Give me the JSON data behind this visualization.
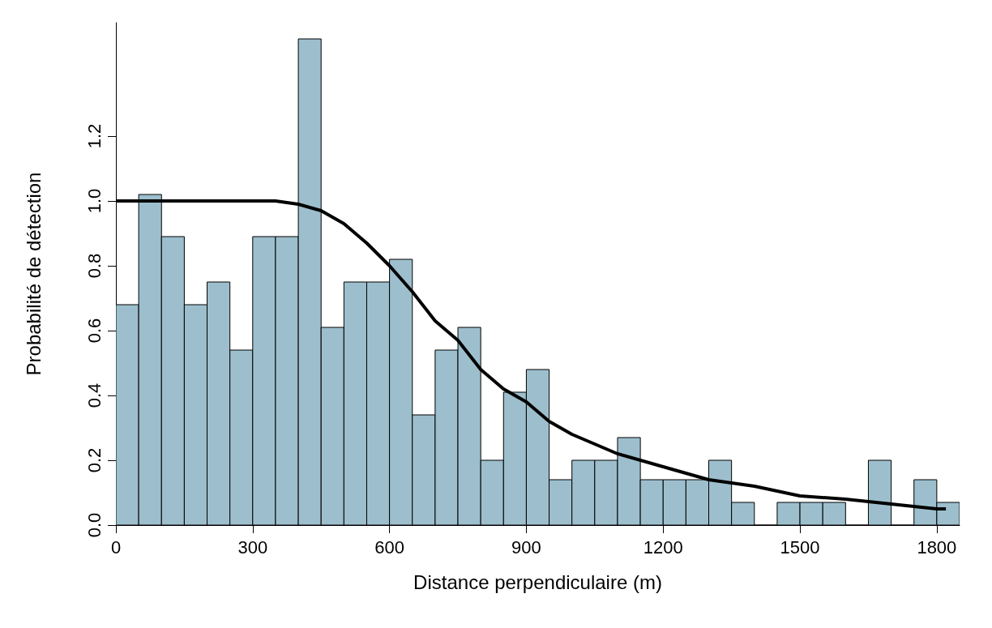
{
  "chart_data": {
    "type": "histogram",
    "xlabel": "Distance perpendiculaire (m)",
    "ylabel": "Probabilité de détection",
    "bins": [
      0,
      50,
      100,
      150,
      200,
      250,
      300,
      350,
      400,
      450,
      500,
      550,
      600,
      650,
      700,
      750,
      800,
      850,
      900,
      950,
      1000,
      1050,
      1100,
      1150,
      1200,
      1250,
      1300,
      1350,
      1400,
      1450,
      1500,
      1550,
      1600,
      1650,
      1700,
      1750,
      1800,
      1850
    ],
    "values": [
      0.68,
      1.02,
      0.89,
      0.68,
      0.75,
      0.54,
      0.89,
      0.89,
      1.5,
      0.61,
      0.75,
      0.75,
      0.82,
      0.34,
      0.54,
      0.61,
      0.2,
      0.41,
      0.48,
      0.14,
      0.2,
      0.2,
      0.27,
      0.14,
      0.14,
      0.14,
      0.2,
      0.07,
      0,
      0.07,
      0.07,
      0.07,
      0,
      0.2,
      0,
      0.14,
      0.07
    ],
    "color": "#9dbfcd",
    "series": [
      {
        "type": "line",
        "color": "#000000",
        "x": [
          0,
          350,
          400,
          450,
          500,
          550,
          600,
          650,
          700,
          750,
          800,
          850,
          900,
          950,
          1000,
          1100,
          1200,
          1300,
          1400,
          1500,
          1600,
          1700,
          1800,
          1820
        ],
        "values": [
          1.0,
          1.0,
          0.99,
          0.97,
          0.93,
          0.87,
          0.8,
          0.72,
          0.63,
          0.57,
          0.48,
          0.42,
          0.38,
          0.32,
          0.28,
          0.22,
          0.18,
          0.14,
          0.12,
          0.09,
          0.08,
          0.065,
          0.05,
          0.05
        ]
      }
    ],
    "xlim": [
      0,
      1850
    ],
    "xticks": [
      0,
      300,
      600,
      900,
      1200,
      1500,
      1800
    ],
    "ylim": [
      0,
      1.55
    ],
    "yticks": [
      {
        "value": 0,
        "label": "0.0"
      },
      0.2,
      0.4,
      0.6,
      0.8,
      {
        "value": 1,
        "label": "1.0"
      },
      1.2
    ],
    "grid": false
  }
}
